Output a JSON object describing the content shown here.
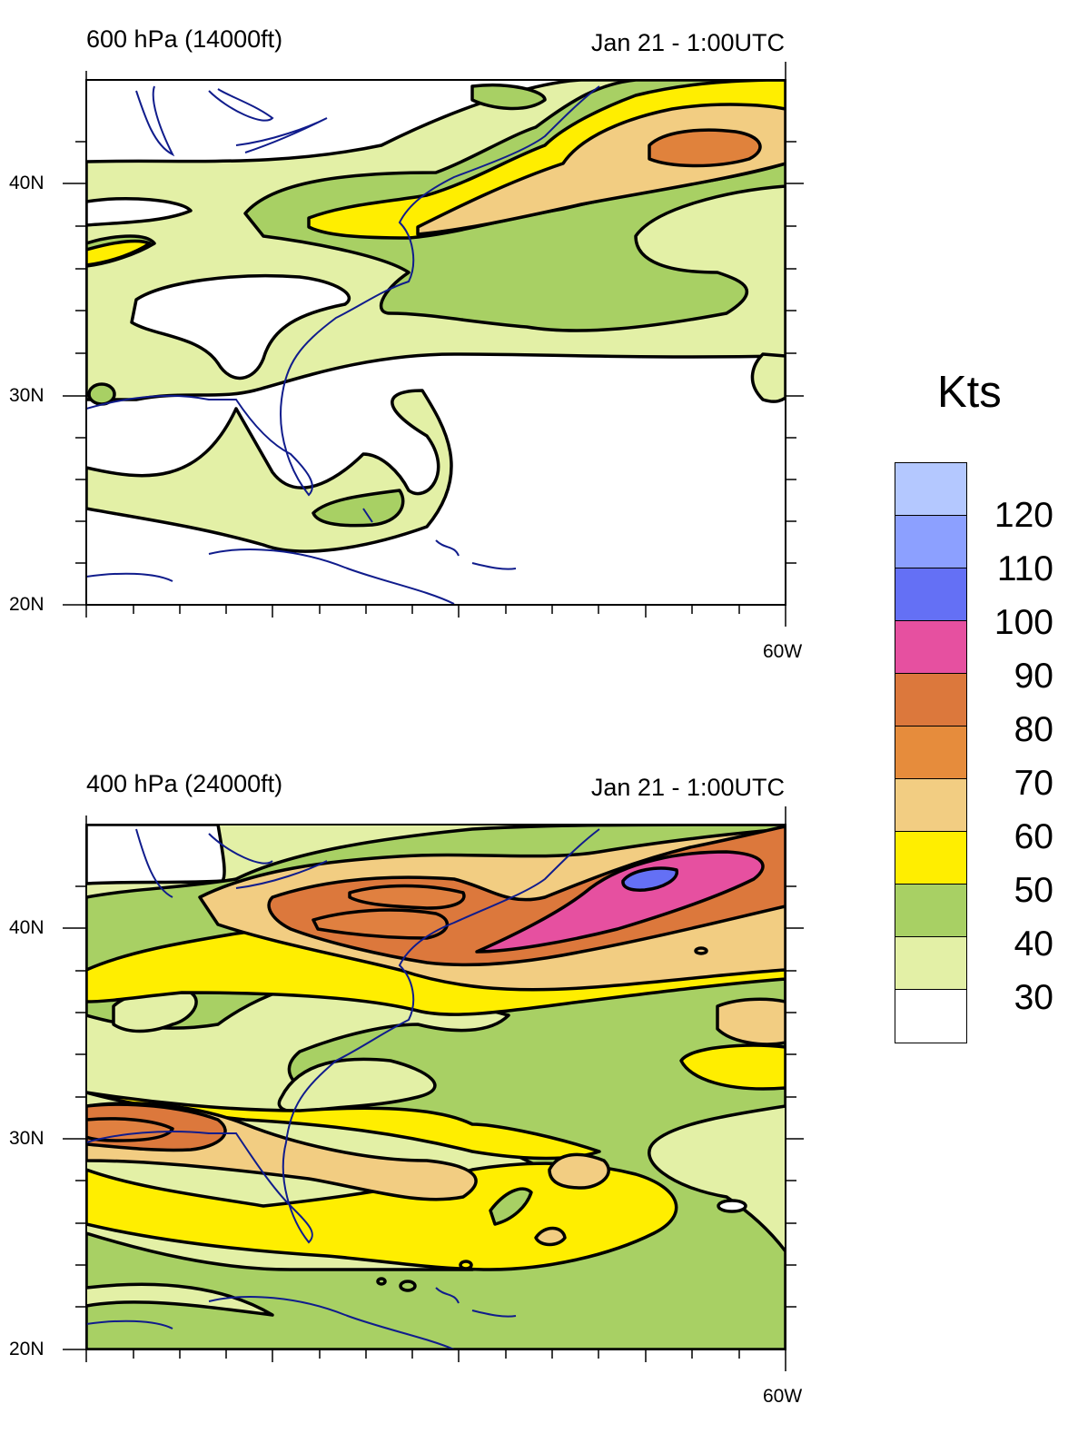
{
  "panels": [
    {
      "level": "600 hPa (14000ft)",
      "time": "Jan 21 - 1:00UTC",
      "lat_labels": [
        "40N",
        "30N",
        "20N"
      ],
      "lon_label": "60W"
    },
    {
      "level": "400 hPa (24000ft)",
      "time": "Jan 21 - 1:00UTC",
      "lat_labels": [
        "40N",
        "30N",
        "20N"
      ],
      "lon_label": "60W"
    }
  ],
  "legend": {
    "title": "Kts",
    "levels": [
      "120",
      "110",
      "100",
      "90",
      "80",
      "70",
      "60",
      "50",
      "40",
      "30"
    ],
    "colors": [
      "#b4c8ff",
      "#8ca0ff",
      "#6470f5",
      "#e650a0",
      "#dc783c",
      "#e68c3c",
      "#f2cd82",
      "#ffee00",
      "#a8d064",
      "#e3f0a6",
      "#ffffff"
    ]
  },
  "map_colors": {
    "coast": "#101c8c",
    "contour": "#000000"
  }
}
